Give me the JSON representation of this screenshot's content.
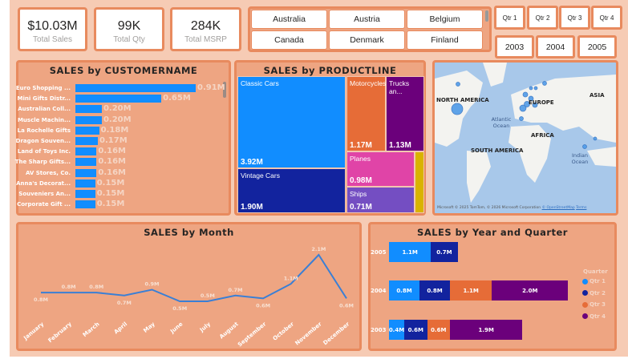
{
  "kpis": [
    {
      "value": "$10.03M",
      "label": "Total Sales"
    },
    {
      "value": "99K",
      "label": "Total Qty"
    },
    {
      "value": "284K",
      "label": "Total MSRP"
    }
  ],
  "countries": [
    "Australia",
    "Austria",
    "Belgium",
    "Canada",
    "Denmark",
    "Finland"
  ],
  "quarters": [
    "Qtr 1",
    "Qtr 2",
    "Qtr 3",
    "Qtr 4"
  ],
  "years": [
    "2003",
    "2004",
    "2005"
  ],
  "customer": {
    "title": "SALES by CUSTOMERNAME",
    "bar_color": "#118dff",
    "items": [
      {
        "name": "Euro Shopping ...",
        "value": 0.91,
        "label": "0.91M"
      },
      {
        "name": "Mini Gifts Distr...",
        "value": 0.65,
        "label": "0.65M"
      },
      {
        "name": "Australian Coll...",
        "value": 0.2,
        "label": "0.20M"
      },
      {
        "name": "Muscle Machin...",
        "value": 0.2,
        "label": "0.20M"
      },
      {
        "name": "La Rochelle Gifts",
        "value": 0.18,
        "label": "0.18M"
      },
      {
        "name": "Dragon Souven...",
        "value": 0.17,
        "label": "0.17M"
      },
      {
        "name": "Land of Toys Inc.",
        "value": 0.16,
        "label": "0.16M"
      },
      {
        "name": "The Sharp Gifts...",
        "value": 0.16,
        "label": "0.16M"
      },
      {
        "name": "AV Stores, Co.",
        "value": 0.16,
        "label": "0.16M"
      },
      {
        "name": "Anna's Decorat...",
        "value": 0.15,
        "label": "0.15M"
      },
      {
        "name": "Souveniers An...",
        "value": 0.15,
        "label": "0.15M"
      },
      {
        "name": "Corporate Gift ...",
        "value": 0.15,
        "label": "0.15M"
      }
    ]
  },
  "productline": {
    "title": "SALES by PRODUCTLINE",
    "items": [
      {
        "name": "Classic Cars",
        "value": "3.92M",
        "color": "#118dff"
      },
      {
        "name": "Vintage Cars",
        "value": "1.90M",
        "color": "#12239e"
      },
      {
        "name": "Motorcycles",
        "value": "1.17M",
        "color": "#e66c37"
      },
      {
        "name": "Trucks an...",
        "value": "1.13M",
        "color": "#6b007b"
      },
      {
        "name": "Planes",
        "value": "0.98M",
        "color": "#e044a7"
      },
      {
        "name": "Ships",
        "value": "0.71M",
        "color": "#744ec2"
      },
      {
        "name": "",
        "value": "",
        "color": "#d9b300"
      }
    ]
  },
  "map": {
    "labels": [
      "NORTH AMERICA",
      "EUROPE",
      "ASIA",
      "AFRICA",
      "SOUTH AMERICA",
      "Atlantic Ocean",
      "Indian Ocean"
    ],
    "attribution": "© 2025 TomTom, © 2026 Microsoft Corporation",
    "osm": "© OpenStreetMap",
    "terms": "Terms",
    "brand": "Microsoft"
  },
  "chart_data": [
    {
      "type": "line",
      "title": "SALES by Month",
      "categories": [
        "January",
        "February",
        "March",
        "April",
        "May",
        "June",
        "July",
        "August",
        "September",
        "October",
        "November",
        "December"
      ],
      "values": [
        0.8,
        0.8,
        0.8,
        0.7,
        0.9,
        0.5,
        0.5,
        0.7,
        0.6,
        1.1,
        2.1,
        0.6
      ],
      "labels": [
        "0.8M",
        "0.8M",
        "0.8M",
        "0.7M",
        "0.9M",
        "0.5M",
        "0.5M",
        "0.7M",
        "0.6M",
        "1.1M",
        "2.1M",
        "0.6M"
      ],
      "color": "#3a7fd5"
    },
    {
      "type": "bar",
      "orientation": "horizontal",
      "stacked": true,
      "title": "SALES by Year and Quarter",
      "categories": [
        "2005",
        "2004",
        "2003"
      ],
      "legend_title": "Quarter",
      "legend_position": "right",
      "series": [
        {
          "name": "Qtr 1",
          "color": "#118dff",
          "values": [
            1.1,
            0.8,
            0.4
          ]
        },
        {
          "name": "Qtr 2",
          "color": "#12239e",
          "values": [
            0.7,
            0.8,
            0.6
          ]
        },
        {
          "name": "Qtr 3",
          "color": "#e66c37",
          "values": [
            null,
            1.1,
            0.6
          ]
        },
        {
          "name": "Qtr 4",
          "color": "#6b007b",
          "values": [
            null,
            2.0,
            1.9
          ]
        }
      ]
    }
  ]
}
